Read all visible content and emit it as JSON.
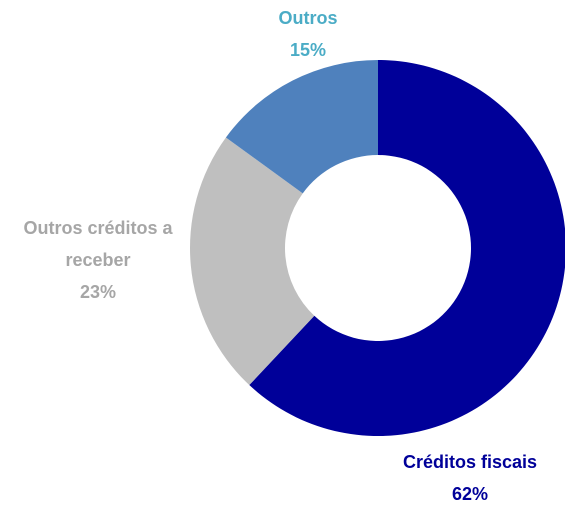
{
  "chart_data": {
    "type": "donut",
    "categories": [
      "Créditos fiscais",
      "Outros créditos a receber",
      "Outros"
    ],
    "values": [
      62,
      23,
      15
    ],
    "value_labels": [
      "62%",
      "23%",
      "15%"
    ],
    "colors": [
      "#000099",
      "#bfbfbf",
      "#4f81bd"
    ],
    "label_colors": [
      "#000099",
      "#a6a6a6",
      "#4bacc6"
    ]
  }
}
